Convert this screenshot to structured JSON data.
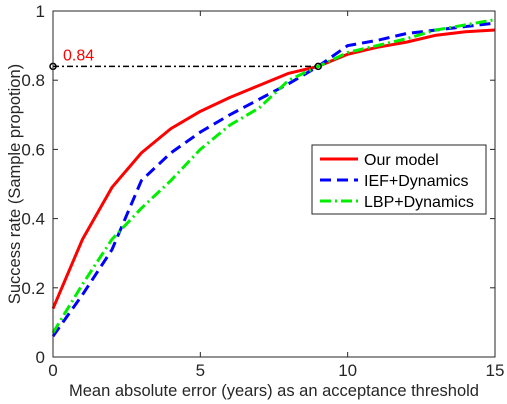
{
  "chart_data": {
    "type": "line",
    "title": "",
    "xlabel": "Mean absolute error (years) as an acceptance threshold",
    "ylabel": "Success rate (Sample propotion)",
    "xlim": [
      0,
      15
    ],
    "ylim": [
      0,
      1
    ],
    "xticks": [
      0,
      5,
      10,
      15
    ],
    "xtick_labels": [
      "0",
      "5",
      "10",
      "15"
    ],
    "yticks": [
      0,
      0.2,
      0.4,
      0.6,
      0.8,
      1
    ],
    "ytick_labels": [
      "0",
      "0.2",
      "0.4",
      "0.6",
      "0.8",
      "1"
    ],
    "grid": false,
    "legend": {
      "placement": "right-center"
    },
    "annotation": {
      "text": "0.84",
      "x": 9,
      "y": 0.84,
      "color": "#ff0000"
    },
    "x": [
      0,
      1,
      2,
      3,
      4,
      5,
      6,
      7,
      8,
      9,
      10,
      11,
      12,
      13,
      14,
      15
    ],
    "series": [
      {
        "name": "Our model",
        "color": "#ff0000",
        "style": "solid",
        "values": [
          0.14,
          0.34,
          0.49,
          0.59,
          0.66,
          0.71,
          0.75,
          0.785,
          0.82,
          0.84,
          0.875,
          0.895,
          0.91,
          0.93,
          0.94,
          0.945
        ]
      },
      {
        "name": "IEF+Dynamics",
        "color": "#0000ff",
        "style": "dashed",
        "values": [
          0.06,
          0.18,
          0.31,
          0.51,
          0.59,
          0.65,
          0.7,
          0.745,
          0.79,
          0.84,
          0.9,
          0.915,
          0.935,
          0.945,
          0.955,
          0.965
        ]
      },
      {
        "name": "LBP+Dynamics",
        "color": "#00ee00",
        "style": "dashdot",
        "values": [
          0.07,
          0.21,
          0.34,
          0.43,
          0.51,
          0.6,
          0.67,
          0.72,
          0.8,
          0.84,
          0.88,
          0.9,
          0.92,
          0.945,
          0.96,
          0.975
        ]
      }
    ]
  }
}
